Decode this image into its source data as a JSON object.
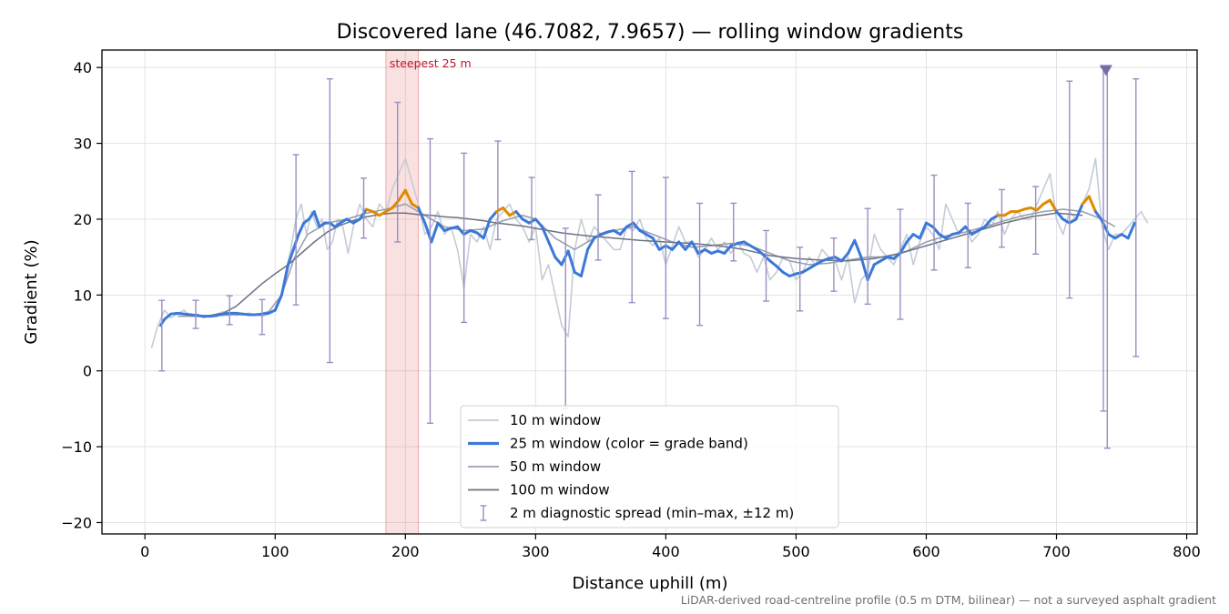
{
  "chart_data": {
    "type": "line",
    "title": "Discovered lane (46.7082, 7.9657) — rolling window gradients",
    "xlabel": "Distance uphill (m)",
    "ylabel": "Gradient (%)",
    "xlim": [
      -33,
      808
    ],
    "ylim": [
      -21.5,
      42.3
    ],
    "xticks": [
      0,
      100,
      200,
      300,
      400,
      500,
      600,
      700,
      800
    ],
    "yticks": [
      -20,
      -10,
      0,
      10,
      20,
      30,
      40
    ],
    "xtick_labels": [
      "0",
      "100",
      "200",
      "300",
      "400",
      "500",
      "600",
      "700",
      "800"
    ],
    "ytick_labels": [
      "−20",
      "−10",
      "0",
      "10",
      "20",
      "30",
      "40"
    ],
    "grid": true,
    "legend_position": "lower-center",
    "footnote": "LiDAR-derived road-centreline profile (0.5 m DTM, bilinear) — not a surveyed asphalt gradient",
    "highlight": {
      "x0": 185,
      "x1": 210,
      "label": "steepest 25 m",
      "color": "#d62728"
    },
    "marker": {
      "x": 738,
      "y": 39.6,
      "shape": "triangle-down",
      "color": "#7b6ca8"
    },
    "grade_band_colors": {
      "normal": "#3b78d8",
      "steep": "#e08a00"
    },
    "legend": [
      {
        "label": "10 m window",
        "kind": "line",
        "color": "#c5ccd6",
        "width": 1.8
      },
      {
        "label": "25 m window (color = grade band)",
        "kind": "line",
        "color": "#3b78d8",
        "width": 3.2
      },
      {
        "label": "50 m window",
        "kind": "line",
        "color": "#9aa0b0",
        "width": 1.8
      },
      {
        "label": "100 m window",
        "kind": "line",
        "color": "#6b7280",
        "width": 1.8
      },
      {
        "label": "2 m diagnostic spread (min–max, ±12 m)",
        "kind": "errorbar",
        "color": "#9a8fc0",
        "width": 1.4
      }
    ],
    "series": [
      {
        "name": "10 m window",
        "color": "#c5ccd6",
        "x": [
          5,
          10,
          15,
          20,
          25,
          30,
          35,
          40,
          45,
          50,
          55,
          60,
          65,
          70,
          75,
          80,
          85,
          90,
          95,
          100,
          105,
          108,
          112,
          116,
          120,
          124,
          128,
          132,
          136,
          140,
          144,
          148,
          152,
          156,
          160,
          165,
          170,
          175,
          180,
          185,
          190,
          195,
          200,
          205,
          210,
          215,
          220,
          225,
          230,
          235,
          240,
          245,
          250,
          255,
          260,
          265,
          270,
          275,
          280,
          285,
          290,
          295,
          300,
          305,
          310,
          315,
          320,
          325,
          330,
          335,
          340,
          345,
          350,
          355,
          360,
          365,
          370,
          375,
          380,
          385,
          390,
          395,
          400,
          405,
          410,
          415,
          420,
          425,
          430,
          435,
          440,
          445,
          450,
          455,
          460,
          465,
          470,
          475,
          480,
          485,
          490,
          495,
          500,
          505,
          510,
          515,
          520,
          525,
          530,
          535,
          540,
          545,
          550,
          555,
          560,
          565,
          570,
          575,
          580,
          585,
          590,
          595,
          600,
          605,
          610,
          615,
          620,
          625,
          630,
          635,
          640,
          645,
          650,
          655,
          660,
          665,
          670,
          675,
          680,
          685,
          690,
          695,
          700,
          705,
          710,
          715,
          720,
          725,
          730,
          735,
          740,
          745,
          750,
          755,
          760,
          765,
          770
        ],
        "y": [
          3,
          6,
          8,
          7,
          7.5,
          8,
          7.2,
          7.5,
          7,
          7.2,
          7.5,
          7.8,
          7.6,
          7.3,
          7.5,
          7.6,
          7.4,
          7.2,
          7.5,
          8,
          10,
          13,
          16,
          20,
          22,
          18,
          21,
          19,
          20,
          16,
          17,
          20,
          19,
          15.5,
          19,
          22,
          20,
          19,
          22,
          21,
          24,
          26,
          28,
          25,
          22,
          18,
          19,
          21,
          18,
          19,
          16,
          11,
          18,
          17,
          19,
          16,
          20,
          21,
          22,
          20,
          19,
          17,
          19,
          12,
          14,
          10,
          6,
          4.5,
          16,
          20,
          17,
          19,
          18,
          17,
          16,
          16,
          19,
          18.5,
          20,
          17.5,
          16.5,
          17.5,
          14,
          16.5,
          19,
          17,
          17,
          15,
          16,
          17.5,
          16,
          17,
          15.5,
          17,
          15.5,
          15,
          13,
          15,
          12,
          13,
          15,
          14.5,
          12,
          13,
          15,
          14,
          16,
          15,
          14.5,
          12,
          15,
          9,
          12,
          13,
          18,
          16,
          15,
          14,
          16,
          18,
          14,
          17,
          19,
          18,
          16,
          22,
          20,
          18,
          19,
          17,
          18,
          20,
          19,
          21,
          18,
          20,
          21,
          20,
          20,
          22,
          24,
          26,
          20,
          18,
          21,
          20,
          22,
          24,
          28,
          19,
          16,
          18,
          18,
          19,
          20,
          21,
          19.5
        ]
      },
      {
        "name": "25 m window (color = grade band)",
        "color": "#3b78d8",
        "x": [
          12,
          15,
          20,
          25,
          30,
          35,
          40,
          45,
          50,
          55,
          60,
          65,
          70,
          75,
          80,
          85,
          90,
          95,
          100,
          105,
          110,
          114,
          118,
          122,
          126,
          130,
          134,
          138,
          142,
          146,
          150,
          155,
          160,
          165,
          170,
          175,
          180,
          185,
          190,
          195,
          200,
          205,
          210,
          215,
          220,
          225,
          230,
          235,
          240,
          245,
          250,
          255,
          260,
          265,
          270,
          275,
          280,
          285,
          290,
          295,
          300,
          305,
          310,
          315,
          320,
          325,
          330,
          335,
          340,
          345,
          350,
          355,
          360,
          365,
          370,
          375,
          380,
          385,
          390,
          395,
          400,
          405,
          410,
          415,
          420,
          425,
          430,
          435,
          440,
          445,
          450,
          455,
          460,
          465,
          470,
          475,
          480,
          485,
          490,
          495,
          500,
          505,
          510,
          515,
          520,
          525,
          530,
          535,
          540,
          545,
          550,
          555,
          560,
          565,
          570,
          575,
          580,
          585,
          590,
          595,
          600,
          605,
          610,
          615,
          620,
          625,
          630,
          635,
          640,
          645,
          650,
          655,
          660,
          665,
          670,
          675,
          680,
          685,
          690,
          695,
          700,
          705,
          710,
          715,
          720,
          725,
          730,
          735,
          740,
          745,
          750,
          755,
          760
        ],
        "y": [
          6,
          6.8,
          7.5,
          7.6,
          7.5,
          7.4,
          7.3,
          7.2,
          7.2,
          7.3,
          7.5,
          7.6,
          7.6,
          7.5,
          7.4,
          7.4,
          7.5,
          7.6,
          8,
          10,
          14,
          16,
          18,
          19.5,
          20,
          21,
          19,
          19.5,
          19.5,
          19,
          19.5,
          20,
          19.5,
          20,
          21.3,
          21,
          20.5,
          21,
          21.5,
          22.5,
          23.8,
          22,
          21.5,
          19.5,
          17,
          19.5,
          18.5,
          18.8,
          19,
          18,
          18.5,
          18.2,
          17.5,
          20,
          21,
          21.5,
          20.5,
          21,
          20,
          19.5,
          20,
          19,
          17,
          15,
          14,
          15.8,
          13,
          12.5,
          16,
          17.5,
          18,
          18.3,
          18.5,
          18,
          19,
          19.5,
          18.5,
          18,
          17.5,
          16,
          16.5,
          16,
          17,
          16,
          17,
          15.5,
          16,
          15.5,
          15.8,
          15.5,
          16.5,
          16.8,
          17,
          16.5,
          16,
          15.3,
          14.5,
          13.8,
          13,
          12.5,
          12.8,
          13,
          13.5,
          14,
          14.5,
          14.8,
          15,
          14.5,
          15.5,
          17.2,
          15,
          12,
          14,
          14.5,
          15,
          14.8,
          15.5,
          17,
          18,
          17.5,
          19.5,
          19,
          18,
          17.5,
          18,
          18.2,
          19,
          18,
          18.5,
          19,
          20,
          20.5,
          20.5,
          21,
          21,
          21.3,
          21.5,
          21.2,
          22,
          22.5,
          21,
          20,
          19.5,
          20,
          22,
          23,
          21,
          19.8,
          18,
          17.5,
          18,
          17.5,
          19.5
        ]
      },
      {
        "name": "50 m window",
        "color": "#9aa0b0",
        "x": [
          25,
          40,
          55,
          70,
          85,
          95,
          105,
          115,
          125,
          140,
          155,
          170,
          185,
          200,
          215,
          230,
          245,
          260,
          275,
          290,
          300,
          315,
          330,
          345,
          360,
          375,
          390,
          405,
          420,
          435,
          450,
          465,
          480,
          495,
          510,
          525,
          540,
          555,
          570,
          585,
          600,
          615,
          630,
          645,
          660,
          675,
          690,
          705,
          720,
          735,
          745
        ],
        "y": [
          7.2,
          7.2,
          7.3,
          7.4,
          7.4,
          7.8,
          10,
          15,
          18,
          19.5,
          20,
          20.8,
          21.3,
          22,
          20.5,
          19,
          18.5,
          18.7,
          19.8,
          20.5,
          20,
          17.5,
          16,
          17.5,
          18.5,
          19,
          18,
          17,
          16.3,
          16.5,
          16.8,
          16.5,
          15.5,
          14.5,
          14,
          14.2,
          14.6,
          15,
          15,
          15.8,
          17,
          17.8,
          18.3,
          19,
          19.8,
          20.5,
          21,
          21.3,
          21,
          20,
          19
        ]
      },
      {
        "name": "100 m window",
        "color": "#6b7280",
        "x": [
          50,
          60,
          70,
          80,
          90,
          100,
          110,
          120,
          130,
          140,
          150,
          160,
          170,
          180,
          190,
          200,
          210,
          220,
          230,
          240,
          250,
          260,
          270,
          280,
          290,
          300,
          320,
          340,
          360,
          380,
          400,
          420,
          440,
          460,
          480,
          500,
          520,
          540,
          560,
          580,
          600,
          620,
          640,
          660,
          680,
          700,
          720
        ],
        "y": [
          7.3,
          7.6,
          8.5,
          10,
          11.5,
          12.8,
          14,
          15.5,
          17,
          18.3,
          19.2,
          19.8,
          20.3,
          20.6,
          20.8,
          20.8,
          20.6,
          20.5,
          20.3,
          20.2,
          20,
          19.8,
          19.5,
          19.3,
          19.1,
          18.8,
          18.2,
          17.8,
          17.5,
          17.2,
          17,
          16.8,
          16.5,
          16,
          15.2,
          14.8,
          14.6,
          14.5,
          14.8,
          15.5,
          16.5,
          17.5,
          18.5,
          19.5,
          20.3,
          20.8,
          20.5
        ]
      }
    ],
    "errorbars": {
      "name": "2 m diagnostic spread (min–max, ±12 m)",
      "color": "#9a8fc0",
      "points": [
        {
          "x": 13,
          "ymin": 0,
          "ymax": 9.3
        },
        {
          "x": 39,
          "ymin": 5.6,
          "ymax": 9.3
        },
        {
          "x": 65,
          "ymin": 6.1,
          "ymax": 9.9
        },
        {
          "x": 90,
          "ymin": 4.8,
          "ymax": 9.4
        },
        {
          "x": 116,
          "ymin": 8.7,
          "ymax": 28.5
        },
        {
          "x": 142,
          "ymin": 1.1,
          "ymax": 38.5
        },
        {
          "x": 168,
          "ymin": 17.5,
          "ymax": 25.4
        },
        {
          "x": 194,
          "ymin": 17,
          "ymax": 35.4
        },
        {
          "x": 219,
          "ymin": -6.9,
          "ymax": 30.6
        },
        {
          "x": 245,
          "ymin": 6.4,
          "ymax": 28.7
        },
        {
          "x": 271,
          "ymin": 17.3,
          "ymax": 30.3
        },
        {
          "x": 297,
          "ymin": 17.3,
          "ymax": 25.5
        },
        {
          "x": 323,
          "ymin": -5,
          "ymax": 18.8
        },
        {
          "x": 348,
          "ymin": 14.6,
          "ymax": 23.2
        },
        {
          "x": 374,
          "ymin": 9,
          "ymax": 26.3
        },
        {
          "x": 400,
          "ymin": 6.9,
          "ymax": 25.5
        },
        {
          "x": 426,
          "ymin": 6,
          "ymax": 22.1
        },
        {
          "x": 452,
          "ymin": 14.5,
          "ymax": 22.1
        },
        {
          "x": 477,
          "ymin": 9.2,
          "ymax": 18.5
        },
        {
          "x": 503,
          "ymin": 7.9,
          "ymax": 16.3
        },
        {
          "x": 529,
          "ymin": 10.5,
          "ymax": 17.5
        },
        {
          "x": 555,
          "ymin": 8.8,
          "ymax": 21.4
        },
        {
          "x": 580,
          "ymin": 6.8,
          "ymax": 21.3
        },
        {
          "x": 606,
          "ymin": 13.3,
          "ymax": 25.8
        },
        {
          "x": 632,
          "ymin": 13.6,
          "ymax": 22.1
        },
        {
          "x": 658,
          "ymin": 16.3,
          "ymax": 23.9
        },
        {
          "x": 684,
          "ymin": 15.4,
          "ymax": 24.3
        },
        {
          "x": 710,
          "ymin": 9.6,
          "ymax": 38.2
        },
        {
          "x": 736,
          "ymin": -5.3,
          "ymax": 40
        },
        {
          "x": 739,
          "ymin": -10.2,
          "ymax": 40
        },
        {
          "x": 761,
          "ymin": 1.9,
          "ymax": 38.5
        }
      ]
    }
  }
}
